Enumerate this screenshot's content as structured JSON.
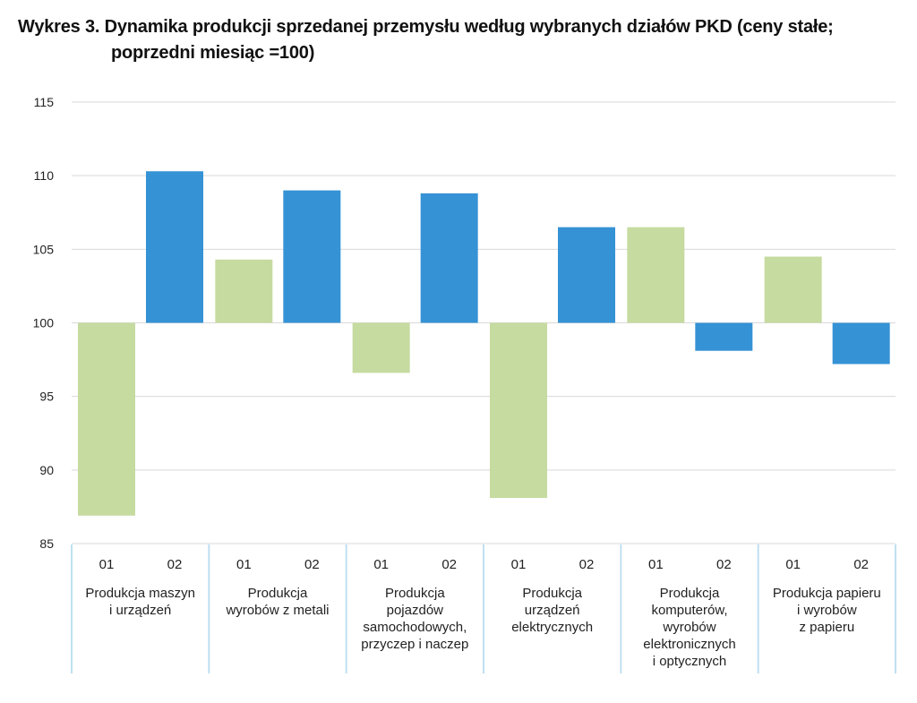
{
  "title_line1": "Wykres 3. Dynamika produkcji sprzedanej przemysłu według wybranych działów PKD (ceny stałe;",
  "title_line2": "poprzedni miesiąc =100)",
  "colors": {
    "series_01": "#c6dba0",
    "series_02": "#3592d5",
    "grid": "#d9d9d9",
    "separator": "#bfe0f2"
  },
  "chart_data": {
    "type": "bar",
    "title": "Wykres 3. Dynamika produkcji sprzedanej przemysłu według wybranych działów PKD (ceny stałe; poprzedni miesiąc =100)",
    "baseline": 100,
    "ylim": [
      85,
      115
    ],
    "yticks": [
      115,
      110,
      105,
      100,
      95,
      90,
      85
    ],
    "grid": true,
    "categories": [
      [
        "Produkcja maszyn",
        "i urządzeń"
      ],
      [
        "Produkcja",
        "wyrobów z metali"
      ],
      [
        "Produkcja",
        "pojazdów",
        "samochodowych,",
        "przyczep i naczep"
      ],
      [
        "Produkcja",
        "urządzeń",
        "elektrycznych"
      ],
      [
        "Produkcja",
        "komputerów,",
        "wyrobów",
        "elektronicznych",
        "i optycznych"
      ],
      [
        "Produkcja papieru",
        "i wyrobów",
        "z papieru"
      ]
    ],
    "series": [
      {
        "name": "01",
        "values": [
          86.9,
          104.3,
          96.6,
          88.1,
          106.5,
          104.5
        ]
      },
      {
        "name": "02",
        "values": [
          110.3,
          109.0,
          108.8,
          106.5,
          98.1,
          97.2
        ]
      }
    ]
  }
}
